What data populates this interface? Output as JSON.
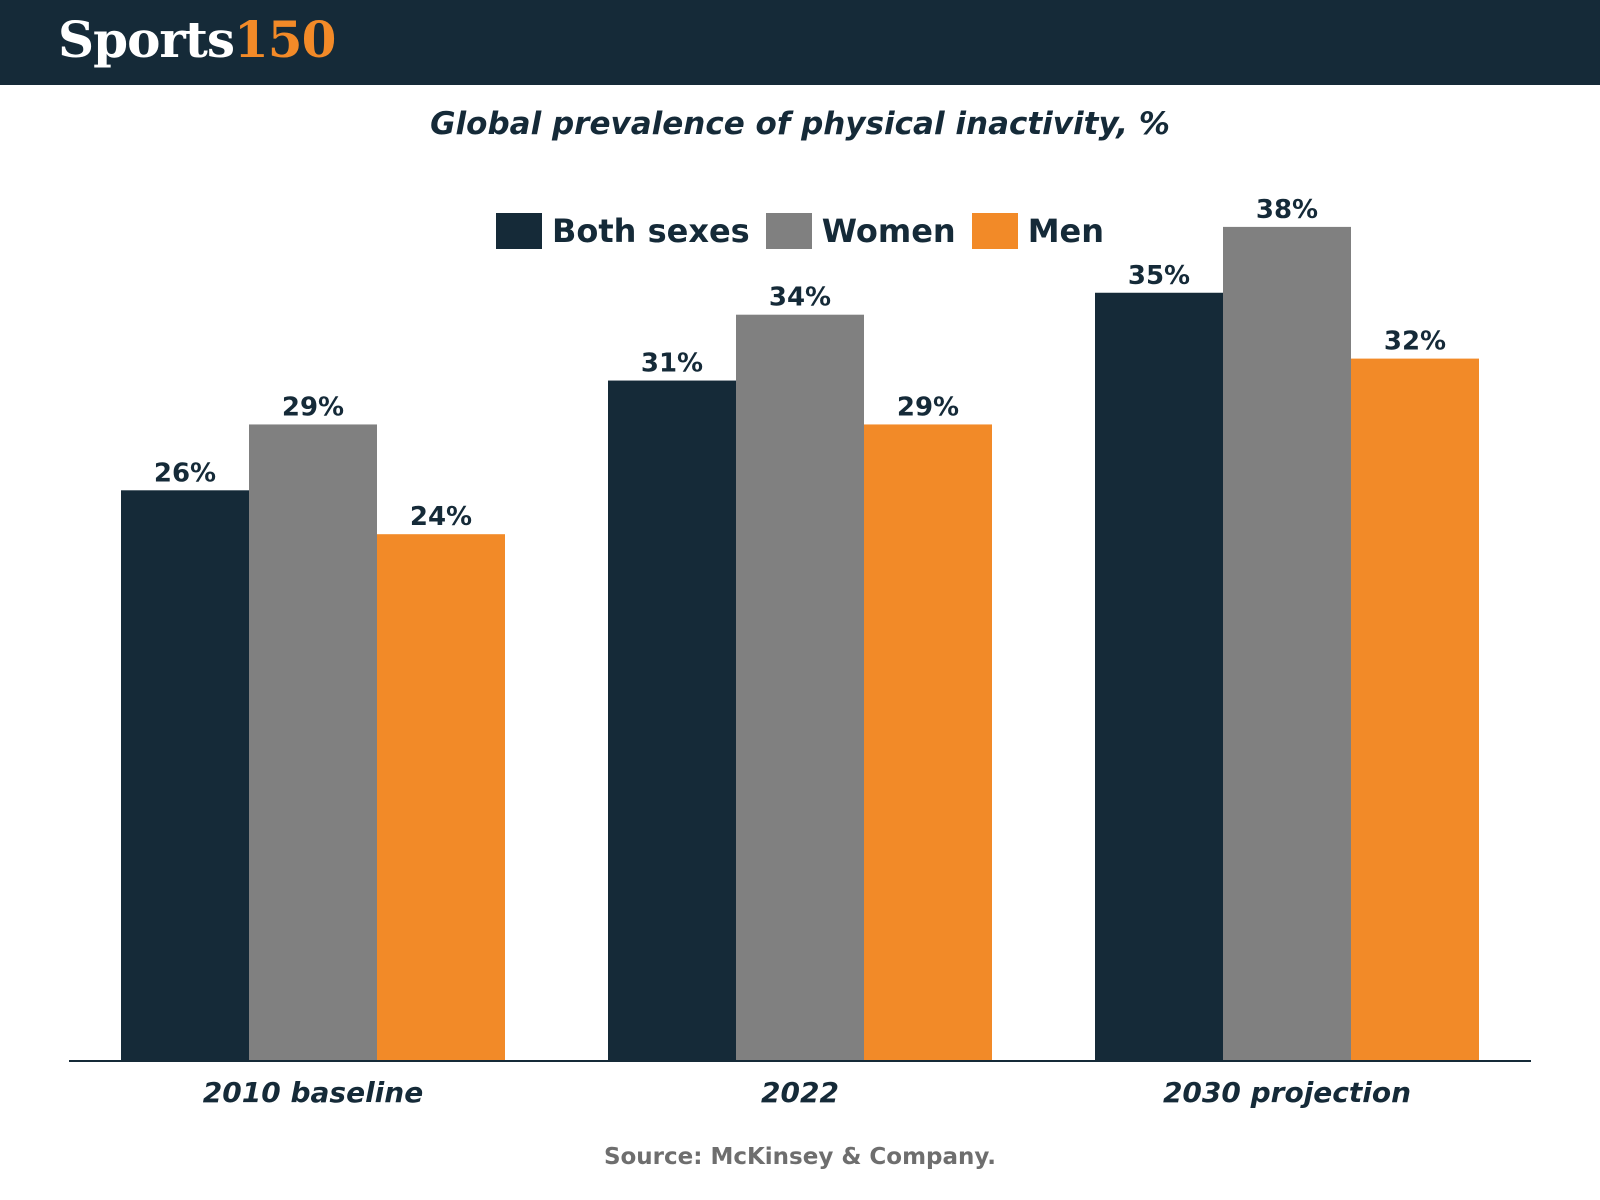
{
  "header": {
    "logo_text_1": "Sports",
    "logo_text_2": "150"
  },
  "colors": {
    "header_bg": "#152a38",
    "both_sexes": "#152a38",
    "women": "#808080",
    "men": "#f28a28",
    "text": "#152a38"
  },
  "chart_data": {
    "type": "bar",
    "title": "Global prevalence of physical inactivity, %",
    "categories": [
      "2010 baseline",
      "2022",
      "2030 projection"
    ],
    "series": [
      {
        "name": "Both sexes",
        "values": [
          26,
          31,
          35
        ],
        "labels": [
          "26%",
          "31%",
          "35%"
        ],
        "color": "#152a38"
      },
      {
        "name": "Women",
        "values": [
          29,
          34,
          38
        ],
        "labels": [
          "29%",
          "34%",
          "38%"
        ],
        "color": "#808080"
      },
      {
        "name": "Men",
        "values": [
          24,
          29,
          32
        ],
        "labels": [
          "24%",
          "29%",
          "32%"
        ],
        "color": "#f28a28"
      }
    ],
    "xlabel": "",
    "ylabel": "",
    "ylim": [
      0,
      38
    ],
    "grid": false,
    "legend_position": "top-center"
  },
  "source": "Source: McKinsey & Company."
}
